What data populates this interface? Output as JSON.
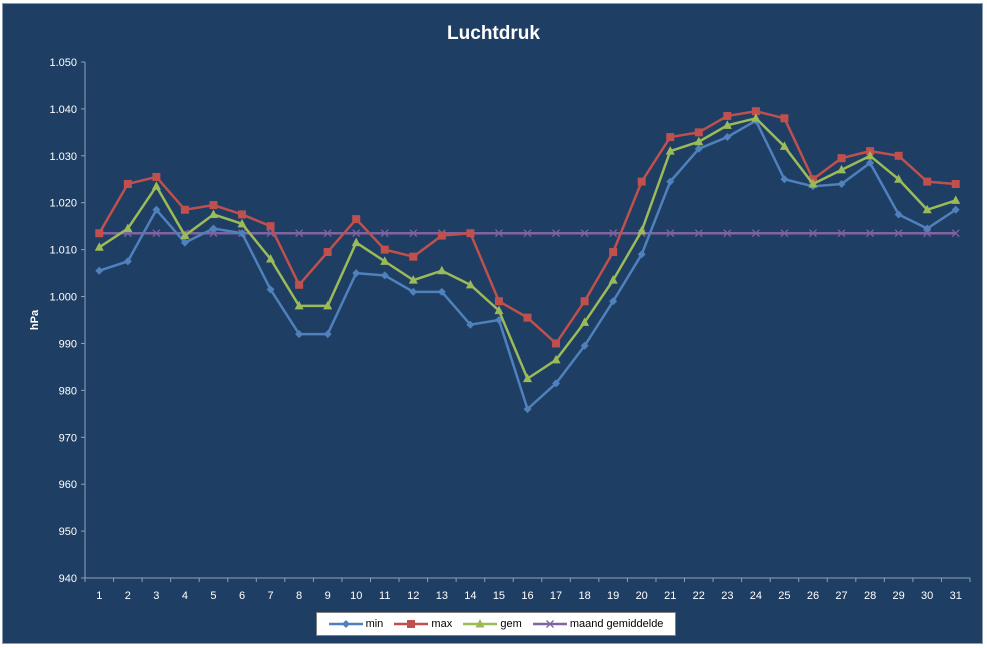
{
  "chart_data": {
    "type": "line",
    "title": "Luchtdruk",
    "xlabel": "",
    "ylabel": "hPa",
    "ylim": [
      940,
      1050
    ],
    "ytick_step": 10,
    "grid": false,
    "legend_position": "bottom",
    "categories": [
      "1",
      "2",
      "3",
      "4",
      "5",
      "6",
      "7",
      "8",
      "9",
      "10",
      "11",
      "12",
      "13",
      "14",
      "15",
      "16",
      "17",
      "18",
      "19",
      "20",
      "21",
      "22",
      "23",
      "24",
      "25",
      "26",
      "27",
      "28",
      "29",
      "30",
      "31"
    ],
    "ytick_labels": [
      "940",
      "950",
      "960",
      "970",
      "980",
      "990",
      "1.000",
      "1.010",
      "1.020",
      "1.030",
      "1.040",
      "1.050"
    ],
    "series": [
      {
        "name": "min",
        "color": "#4f81bd",
        "marker": "diamond",
        "values": [
          1005.5,
          1007.5,
          1018.5,
          1011.5,
          1014.5,
          1013.5,
          1001.5,
          992,
          992,
          1005,
          1004.5,
          1001,
          1001,
          994,
          995,
          976,
          981.5,
          989.5,
          999,
          1009,
          1024.5,
          1031.5,
          1034,
          1037.5,
          1025,
          1023.5,
          1024,
          1028.5,
          1017.5,
          1014.5,
          1018.5
        ]
      },
      {
        "name": "max",
        "color": "#c0504d",
        "marker": "square",
        "values": [
          1013.5,
          1024,
          1025.5,
          1018.5,
          1019.5,
          1017.5,
          1015,
          1002.5,
          1009.5,
          1016.5,
          1010,
          1008.5,
          1013,
          1013.5,
          999,
          995.5,
          990,
          999,
          1009.5,
          1024.5,
          1034,
          1035,
          1038.5,
          1039.5,
          1038,
          1025,
          1029.5,
          1031,
          1030,
          1024.5,
          1024
        ]
      },
      {
        "name": "gem",
        "color": "#9bbb59",
        "marker": "triangle",
        "values": [
          1010.5,
          1014.5,
          1023.5,
          1013,
          1017.5,
          1015.5,
          1008,
          998,
          998,
          1011.5,
          1007.5,
          1003.5,
          1005.5,
          1002.5,
          997,
          982.5,
          986.5,
          994.5,
          1003.5,
          1014,
          1031,
          1033,
          1036.5,
          1038,
          1032,
          1024,
          1027,
          1030,
          1025,
          1018.5,
          1020.5
        ]
      },
      {
        "name": "maand gemiddelde",
        "color": "#8064a2",
        "marker": "x",
        "values": [
          1013.5,
          1013.5,
          1013.5,
          1013.5,
          1013.5,
          1013.5,
          1013.5,
          1013.5,
          1013.5,
          1013.5,
          1013.5,
          1013.5,
          1013.5,
          1013.5,
          1013.5,
          1013.5,
          1013.5,
          1013.5,
          1013.5,
          1013.5,
          1013.5,
          1013.5,
          1013.5,
          1013.5,
          1013.5,
          1013.5,
          1013.5,
          1013.5,
          1013.5,
          1013.5,
          1013.5
        ]
      }
    ]
  }
}
